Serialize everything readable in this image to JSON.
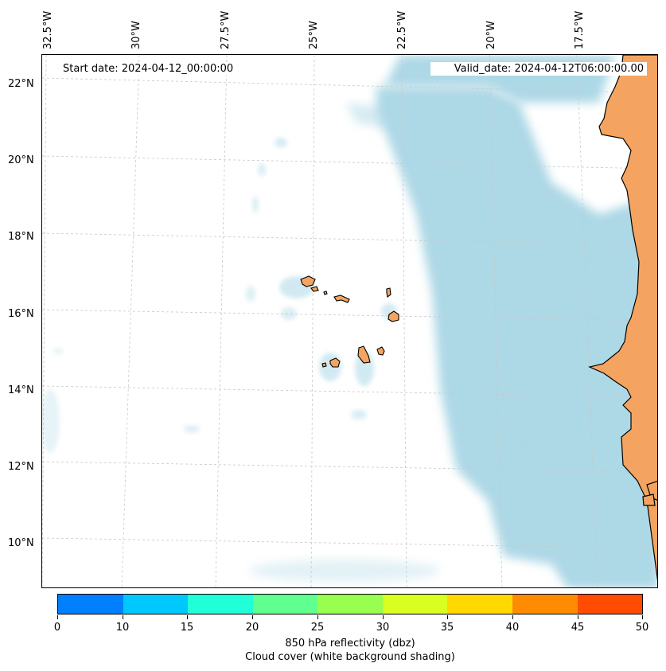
{
  "map": {
    "start_date_label": "Start date: 2024-04-12_00:00:00",
    "valid_date_label": "Valid_date: 2024-04-12T06:00:00.00",
    "longitude_labels": [
      "32.5°W",
      "30°W",
      "27.5°W",
      "25°W",
      "22.5°W",
      "20°W",
      "17.5°W"
    ],
    "latitude_labels": [
      "22°N",
      "20°N",
      "18°N",
      "16°N",
      "14°N",
      "12°N",
      "10°N"
    ],
    "colors": {
      "cloud": "#add8e6",
      "land": "#f4a460",
      "gridline": "#c8c8c8",
      "coastline": "#000000"
    },
    "features": [
      "Cape Verde islands",
      "West African coastline"
    ]
  },
  "colorbar": {
    "ticks": [
      "0",
      "10",
      "15",
      "20",
      "25",
      "30",
      "35",
      "40",
      "45",
      "50"
    ],
    "colors": [
      "#0080ff",
      "#00c8ff",
      "#20ffd8",
      "#60ff90",
      "#98ff50",
      "#d8ff20",
      "#ffd800",
      "#ff8c00",
      "#ff4c00"
    ],
    "label_line1": "850 hPa reflectivity (dbz)",
    "label_line2": "Cloud cover (white background shading)"
  }
}
